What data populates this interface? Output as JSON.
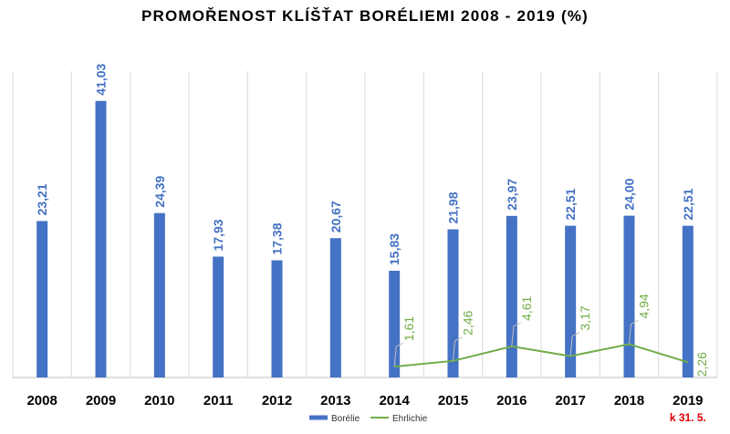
{
  "chart_data": {
    "type": "bar",
    "title": "PROMOŘENOST KLÍŠŤAT BORÉLIEMI 2008 - 2019 (%)",
    "categories": [
      "2008",
      "2009",
      "2010",
      "2011",
      "2012",
      "2013",
      "2014",
      "2015",
      "2016",
      "2017",
      "2018",
      "2019"
    ],
    "series": [
      {
        "name": "Borélie",
        "type": "bar",
        "color": "#4472c4",
        "values": [
          23.21,
          41.03,
          24.39,
          17.93,
          17.38,
          20.67,
          15.83,
          21.98,
          23.97,
          22.51,
          24.0,
          22.51
        ],
        "labels": [
          "23,21",
          "41,03",
          "24,39",
          "17,93",
          "17,38",
          "20,67",
          "15,83",
          "21,98",
          "23,97",
          "22,51",
          "24,00",
          "22,51"
        ]
      },
      {
        "name": "Ehrlichie",
        "type": "line",
        "color": "#70ad47",
        "values": [
          null,
          null,
          null,
          null,
          null,
          null,
          1.61,
          2.46,
          4.61,
          3.17,
          4.94,
          2.26
        ],
        "labels": [
          "",
          "",
          "",
          "",
          "",
          "",
          "1,61",
          "2,46",
          "4,61",
          "3,17",
          "4,94",
          "2,26"
        ]
      }
    ],
    "ylim": [
      0,
      45
    ],
    "grid": "vertical category separators",
    "legend": "bottom-center",
    "annotation": "k 31. 5."
  }
}
